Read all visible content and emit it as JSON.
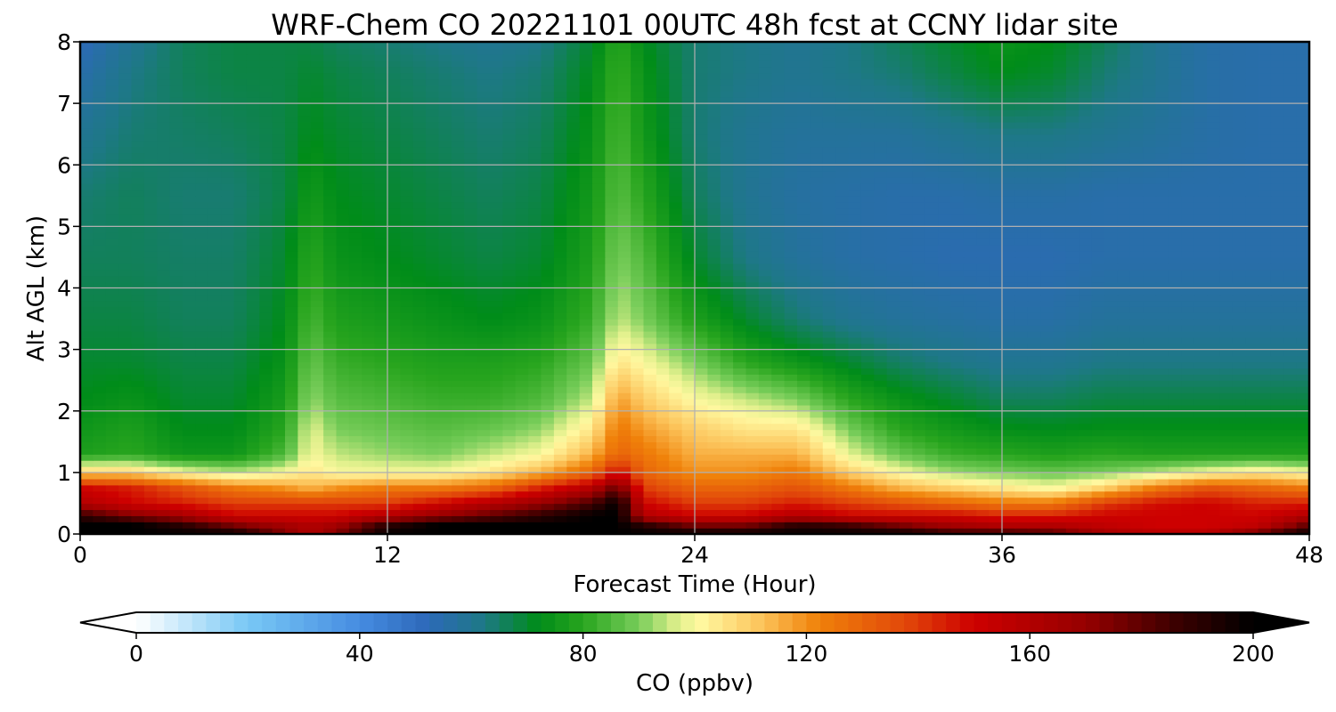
{
  "chart_data": {
    "type": "heatmap",
    "title": "WRF-Chem CO  20221101 00UTC 48h fcst at CCNY lidar site",
    "xlabel": "Forecast Time (Hour)",
    "ylabel": "Alt AGL (km)",
    "xlim": [
      0,
      48
    ],
    "ylim": [
      0,
      8
    ],
    "xticks": [
      "0",
      "12",
      "24",
      "36",
      "48"
    ],
    "yticks": [
      "0",
      "1",
      "2",
      "3",
      "4",
      "5",
      "6",
      "7",
      "8"
    ],
    "grid": true,
    "x": [
      0,
      2,
      4,
      6,
      8,
      9,
      10,
      12,
      14,
      16,
      18,
      20,
      21,
      22,
      24,
      26,
      28,
      30,
      32,
      34,
      36,
      38,
      40,
      42,
      44,
      46,
      48
    ],
    "y": [
      0,
      0.15,
      0.3,
      0.5,
      0.75,
      1,
      1.3,
      1.7,
      2.2,
      2.8,
      3.5,
      4.5,
      5.5,
      6.5,
      7.5,
      8
    ],
    "z": [
      [
        200,
        200,
        200,
        200,
        175,
        160,
        175,
        200,
        200,
        200,
        200,
        200,
        200,
        200,
        200,
        200,
        200,
        200,
        200,
        190,
        190,
        185,
        165,
        158,
        158,
        180,
        200
      ],
      [
        200,
        200,
        190,
        175,
        165,
        160,
        165,
        190,
        200,
        200,
        200,
        200,
        200,
        190,
        175,
        175,
        190,
        185,
        175,
        165,
        160,
        160,
        155,
        150,
        150,
        155,
        180
      ],
      [
        190,
        175,
        165,
        150,
        150,
        150,
        150,
        160,
        170,
        180,
        190,
        200,
        200,
        160,
        150,
        150,
        160,
        150,
        150,
        150,
        145,
        145,
        150,
        150,
        150,
        150,
        160
      ],
      [
        160,
        150,
        145,
        140,
        140,
        140,
        140,
        140,
        150,
        160,
        170,
        185,
        200,
        150,
        140,
        140,
        145,
        140,
        135,
        130,
        125,
        125,
        140,
        148,
        150,
        145,
        145
      ],
      [
        150,
        145,
        135,
        125,
        120,
        115,
        120,
        125,
        125,
        130,
        145,
        160,
        180,
        140,
        130,
        130,
        135,
        125,
        115,
        110,
        105,
        100,
        110,
        125,
        135,
        130,
        125
      ],
      [
        110,
        110,
        100,
        95,
        100,
        105,
        100,
        100,
        100,
        105,
        115,
        130,
        150,
        130,
        120,
        120,
        125,
        110,
        100,
        93,
        90,
        88,
        90,
        95,
        100,
        105,
        100
      ],
      [
        78,
        80,
        75,
        75,
        85,
        100,
        95,
        92,
        90,
        95,
        100,
        115,
        130,
        125,
        115,
        115,
        115,
        98,
        88,
        82,
        80,
        78,
        80,
        78,
        78,
        78,
        78
      ],
      [
        75,
        78,
        72,
        72,
        80,
        98,
        90,
        88,
        86,
        88,
        92,
        105,
        125,
        118,
        110,
        105,
        105,
        90,
        80,
        76,
        73,
        72,
        73,
        73,
        73,
        73,
        73
      ],
      [
        72,
        74,
        70,
        70,
        77,
        92,
        86,
        84,
        82,
        82,
        85,
        95,
        118,
        110,
        100,
        95,
        90,
        80,
        74,
        70,
        66,
        66,
        68,
        68,
        68,
        68,
        68
      ],
      [
        70,
        70,
        68,
        68,
        74,
        88,
        82,
        80,
        78,
        78,
        80,
        88,
        105,
        100,
        90,
        80,
        75,
        70,
        65,
        62,
        60,
        60,
        62,
        62,
        62,
        62,
        62
      ],
      [
        68,
        68,
        66,
        66,
        72,
        84,
        78,
        76,
        74,
        72,
        74,
        82,
        95,
        90,
        78,
        70,
        64,
        60,
        58,
        57,
        56,
        56,
        58,
        58,
        58,
        58,
        58
      ],
      [
        66,
        66,
        65,
        65,
        70,
        80,
        74,
        72,
        70,
        68,
        70,
        78,
        90,
        85,
        70,
        62,
        58,
        56,
        55,
        54,
        54,
        54,
        55,
        55,
        55,
        55,
        55
      ],
      [
        64,
        66,
        64,
        64,
        68,
        76,
        72,
        70,
        68,
        66,
        68,
        76,
        86,
        80,
        66,
        60,
        57,
        56,
        55,
        55,
        56,
        56,
        55,
        55,
        55,
        55,
        55
      ],
      [
        60,
        64,
        65,
        66,
        68,
        72,
        70,
        68,
        66,
        64,
        66,
        74,
        84,
        76,
        64,
        60,
        58,
        58,
        58,
        60,
        62,
        62,
        60,
        58,
        56,
        55,
        55
      ],
      [
        55,
        62,
        66,
        68,
        68,
        70,
        68,
        66,
        64,
        62,
        64,
        72,
        82,
        74,
        64,
        62,
        60,
        62,
        64,
        68,
        72,
        70,
        64,
        60,
        56,
        55,
        55
      ],
      [
        52,
        60,
        66,
        68,
        68,
        68,
        66,
        64,
        62,
        60,
        62,
        70,
        80,
        72,
        64,
        62,
        60,
        62,
        66,
        70,
        74,
        72,
        66,
        60,
        56,
        55,
        55
      ]
    ],
    "colorbar": {
      "label": "CO  (ppbv)",
      "min": 0,
      "max": 200,
      "ticks": [
        "0",
        "40",
        "80",
        "120",
        "160",
        "200"
      ],
      "extend": "both"
    }
  }
}
